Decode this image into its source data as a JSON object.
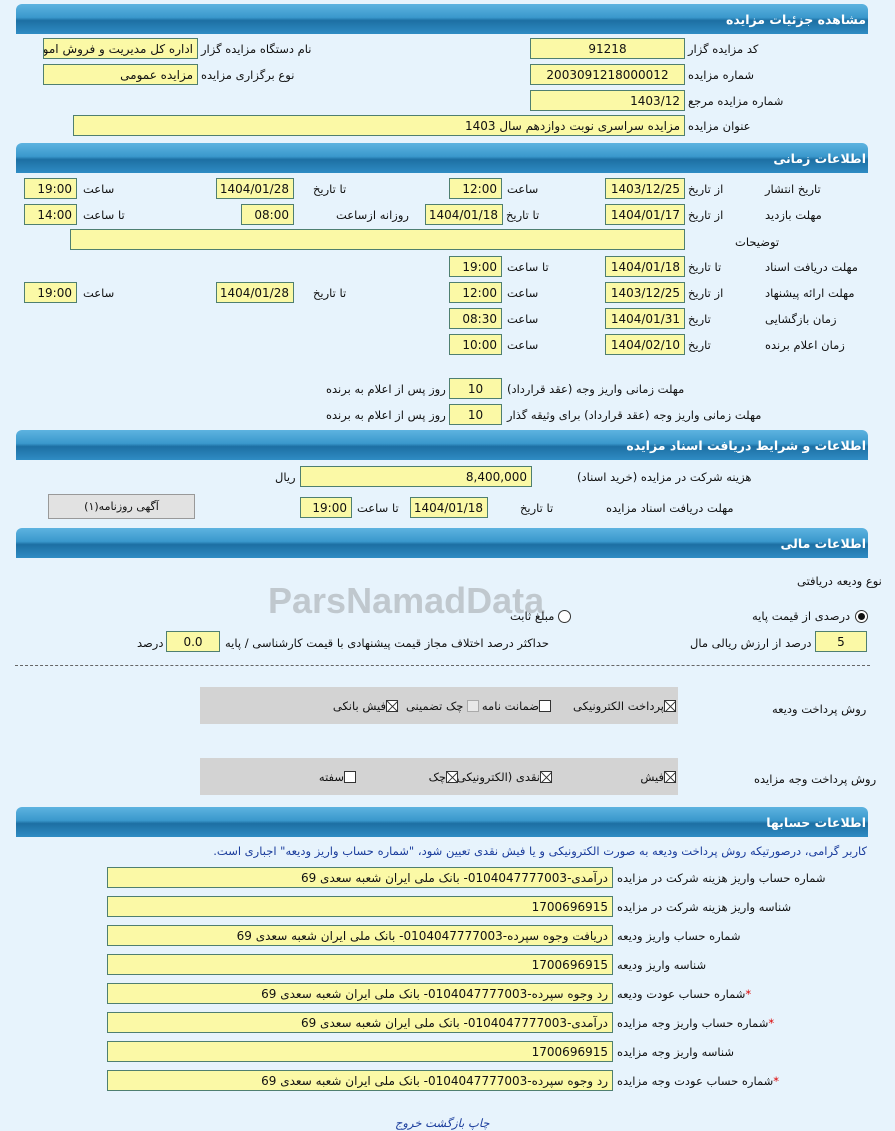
{
  "sections": {
    "details": "مشاهده جزئیات مزایده",
    "time": "اطلاعات زمانی",
    "docs": "اطلاعات و شرایط دریافت اسناد مزایده",
    "finance": "اطلاعات مالی",
    "accounts": "اطلاعات حسابها"
  },
  "details": {
    "code_label": "کد مزایده گزار",
    "code": "91218",
    "org_label": "نام دستگاه مزایده گزار",
    "org": "اداره کل مدیریت و فروش اموال",
    "number_label": "شماره مزایده",
    "number": "2003091218000012",
    "type_label": "نوع برگزاری مزایده",
    "type": "مزایده عمومی",
    "ref_label": "شماره مزایده مرجع",
    "ref": "1403/12",
    "title_label": "عنوان مزایده",
    "title": "مزایده سراسری نوبت دوازدهم سال 1403"
  },
  "time": {
    "from_date": "از تاریخ",
    "to_date": "تا تاریخ",
    "date": "تاریخ",
    "hour": "ساعت",
    "to_hour": "تا ساعت",
    "daily_from": "روزانه ازساعت",
    "publish": {
      "label": "تاریخ انتشار",
      "from": "1403/12/25",
      "from_time": "12:00",
      "to": "1404/01/28",
      "to_time": "19:00"
    },
    "visit": {
      "label": "مهلت بازدید",
      "from": "1404/01/17",
      "to": "1404/01/18",
      "daily_from": "08:00",
      "to_time": "14:00"
    },
    "desc_label": "توضیحات",
    "desc": "",
    "docs": {
      "label": "مهلت دریافت اسناد",
      "to": "1404/01/18",
      "to_time": "19:00"
    },
    "offer": {
      "label": "مهلت ارائه پیشنهاد",
      "from": "1403/12/25",
      "from_time": "12:00",
      "to": "1404/01/28",
      "to_time": "19:00"
    },
    "opening": {
      "label": "زمان بازگشایی",
      "date": "1404/01/31",
      "time": "08:30"
    },
    "winner": {
      "label": "زمان اعلام برنده",
      "date": "1404/02/10",
      "time": "10:00"
    },
    "pay1_label": "مهلت زمانی واریز وجه (عقد قرارداد)",
    "pay1": "10",
    "pay2_label": "مهلت زمانی واریز وجه (عقد قرارداد) برای وثیقه گذار",
    "pay2": "10",
    "days_after": "روز پس از اعلام به برنده"
  },
  "docs": {
    "fee_label": "هزینه شرکت در مزایده (خرید اسناد)",
    "fee": "8,400,000",
    "currency": "ریال",
    "deadline_label": "مهلت دریافت اسناد مزایده",
    "to_date_label": "تا تاریخ",
    "to_date": "1404/01/18",
    "to_time_label": "تا ساعت",
    "to_time": "19:00",
    "newspaper_button": "آگهی روزنامه(۱)"
  },
  "finance": {
    "deposit_type_label": "نوع ودیعه دریافتی",
    "radio_percent": "درصدی از قیمت پایه",
    "radio_fixed": "مبلغ ثابت",
    "selected": "percent",
    "percent": "5",
    "percent_label": "درصد از ارزش ریالی مال",
    "max_diff_label": "حداکثر درصد اختلاف مجاز قیمت پیشنهادی با قیمت کارشناسی / پایه",
    "max_diff": "0.0",
    "percent_unit": "درصد",
    "deposit_method_label": "روش پرداخت ودیعه",
    "deposit_methods": [
      {
        "label": "پرداخت الکترونیکی",
        "checked": true
      },
      {
        "label": "ضمانت نامه",
        "checked": false
      },
      {
        "label": "چک تضمینی",
        "checked": false,
        "disabled": true
      },
      {
        "label": "فیش بانکی",
        "checked": true
      }
    ],
    "payment_method_label": "روش پرداخت وجه مزایده",
    "payment_methods": [
      {
        "label": "فیش",
        "checked": true
      },
      {
        "label": "نقدی (الکترونیکی)",
        "checked": true
      },
      {
        "label": "چک",
        "checked": true
      },
      {
        "label": "سفته",
        "checked": false
      }
    ]
  },
  "accounts": {
    "note": "کاربر گرامی، درصورتیکه روش پرداخت ودیعه به صورت الکترونیکی و یا فیش نقدی تعیین شود، \"شماره حساب واریز ودیعه\" اجباری است.",
    "rows": [
      {
        "label": "شماره حساب واریز هزینه شرکت در مزایده",
        "value": "درآمدی-0104047777003- بانک ملی ایران شعبه سعدی 69",
        "required": false
      },
      {
        "label": "شناسه واریز هزینه شرکت در مزایده",
        "value": "1700696915",
        "required": false
      },
      {
        "label": "شماره حساب واریز ودیعه",
        "value": "دریافت وجوه سپرده-0104047777003- بانک ملی ایران شعبه سعدی 69",
        "required": false
      },
      {
        "label": "شناسه واریز ودیعه",
        "value": "1700696915",
        "required": false
      },
      {
        "label": "شماره حساب عودت ودیعه",
        "value": "رد وجوه سپرده-0104047777003- بانک ملی ایران شعبه سعدی 69",
        "required": true
      },
      {
        "label": "شماره حساب واریز وجه مزایده",
        "value": "درآمدی-0104047777003- بانک ملی ایران شعبه سعدی 69",
        "required": true
      },
      {
        "label": "شناسه واریز وجه مزایده",
        "value": "1700696915",
        "required": false
      },
      {
        "label": "شماره حساب عودت وجه مزایده",
        "value": "رد وجوه سپرده-0104047777003- بانک ملی ایران شعبه سعدی 69",
        "required": true
      }
    ]
  },
  "footer": {
    "print": "چاپ",
    "back": "بازگشت",
    "exit": "خروج"
  },
  "watermark": "ParsNamadData",
  "colors": {
    "field": "#fbf9a6",
    "header": "#2f8cc4",
    "background": "#e7f3fc"
  }
}
